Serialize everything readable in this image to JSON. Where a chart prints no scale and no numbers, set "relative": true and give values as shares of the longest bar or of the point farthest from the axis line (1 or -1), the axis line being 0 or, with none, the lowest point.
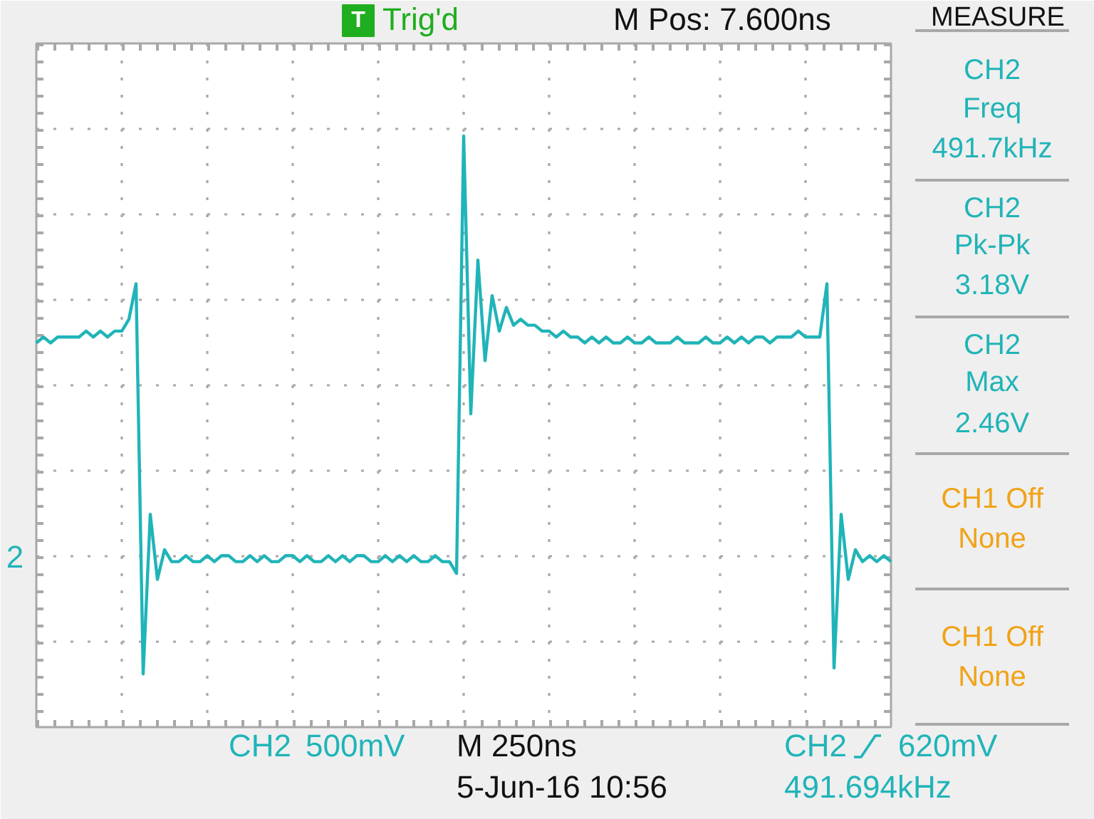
{
  "chart_data": {
    "type": "line",
    "relative": true,
    "grid": true,
    "tick_labels": false,
    "categories": [
      null,
      null,
      null,
      null,
      null,
      null,
      null,
      null,
      null,
      null,
      null,
      null,
      null,
      null,
      null,
      null,
      null,
      null,
      null,
      null,
      null,
      null,
      null,
      null,
      null,
      null,
      null,
      null,
      null,
      null,
      null,
      null,
      null,
      null,
      null,
      null,
      null,
      null,
      null,
      null,
      null,
      null,
      null,
      null,
      null,
      null,
      null,
      null,
      null,
      null,
      null,
      null,
      null,
      null,
      null,
      null,
      null,
      null,
      null,
      null,
      null,
      null,
      null,
      null,
      null,
      null,
      null,
      null,
      null,
      null,
      null,
      null,
      null,
      null,
      null,
      null,
      null,
      null,
      null,
      null,
      null,
      null,
      null,
      null,
      null,
      null,
      null,
      null,
      null,
      null,
      null,
      null,
      null,
      null,
      null,
      null,
      null,
      null,
      null,
      null,
      null,
      null,
      null,
      null,
      null,
      null,
      null,
      null,
      null,
      null,
      null,
      null,
      null,
      null,
      null,
      null,
      null,
      null,
      null,
      null,
      null
    ],
    "series": [
      {
        "color": "#20b4b8",
        "values": [
          0.65,
          0.66,
          0.65,
          0.66,
          0.66,
          0.66,
          0.66,
          0.67,
          0.66,
          0.67,
          0.66,
          0.67,
          0.67,
          0.69,
          0.75,
          0.09,
          0.36,
          0.25,
          0.3,
          0.28,
          0.28,
          0.29,
          0.28,
          0.28,
          0.29,
          0.28,
          0.29,
          0.29,
          0.28,
          0.28,
          0.29,
          0.28,
          0.29,
          0.28,
          0.28,
          0.29,
          0.29,
          0.28,
          0.29,
          0.28,
          0.28,
          0.29,
          0.28,
          0.29,
          0.28,
          0.29,
          0.29,
          0.28,
          0.28,
          0.29,
          0.28,
          0.29,
          0.28,
          0.29,
          0.28,
          0.28,
          0.29,
          0.28,
          0.28,
          0.26,
          1,
          0.53,
          0.79,
          0.62,
          0.73,
          0.67,
          0.71,
          0.68,
          0.69,
          0.68,
          0.68,
          0.67,
          0.67,
          0.66,
          0.67,
          0.66,
          0.66,
          0.65,
          0.66,
          0.65,
          0.66,
          0.65,
          0.65,
          0.66,
          0.65,
          0.65,
          0.66,
          0.65,
          0.65,
          0.65,
          0.66,
          0.65,
          0.65,
          0.65,
          0.66,
          0.65,
          0.65,
          0.66,
          0.65,
          0.66,
          0.65,
          0.66,
          0.66,
          0.65,
          0.66,
          0.66,
          0.66,
          0.67,
          0.66,
          0.66,
          0.66,
          0.75,
          0.1,
          0.36,
          0.25,
          0.3,
          0.28,
          0.29,
          0.28,
          0.29,
          0.28
        ]
      }
    ],
    "annotations": [
      "T",
      "Trig'd",
      "M Pos: 7.600ns",
      "MEASURE",
      "CH2",
      "Freq",
      "491.7kHz",
      "CH2",
      "Pk-Pk",
      "3.18V",
      "CH2",
      "Max",
      "2.46V",
      "CH1 Off",
      "None",
      "CH1 Off",
      "None",
      "CH2",
      "500mV",
      "M 250ns",
      "5-Jun-16 10:56",
      "CH2",
      "620mV",
      "491.694kHz",
      "2"
    ]
  }
}
